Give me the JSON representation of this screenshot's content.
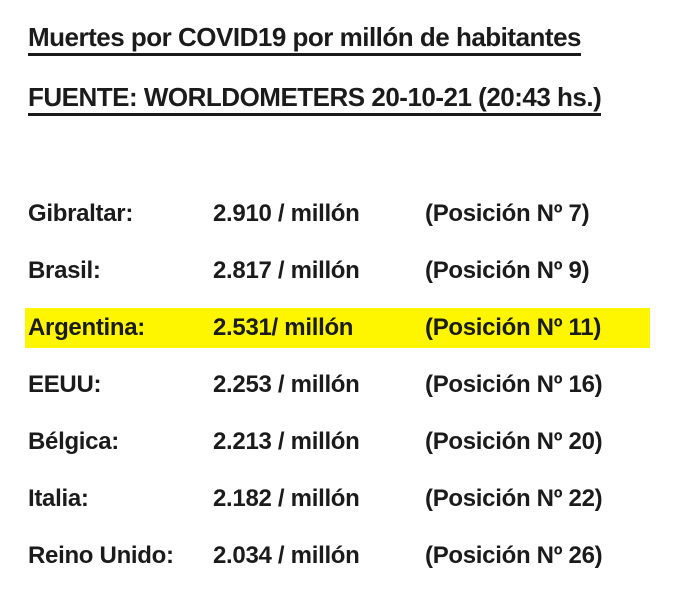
{
  "colors": {
    "background": "#ffffff",
    "text": "#1b1b1b",
    "highlight": "#fdf600"
  },
  "header": {
    "title": "Muertes por COVID19 por millón de habitantes",
    "source": "FUENTE: WORLDOMETERS 20-10-21 (20:43 hs.)"
  },
  "table": {
    "rows": [
      {
        "country": "Gibraltar:",
        "value": "2.910 / millón",
        "position": "(Posición Nº 7)",
        "highlighted": false
      },
      {
        "country": "Brasil:",
        "value": "2.817 / millón",
        "position": "(Posición Nº 9)",
        "highlighted": false
      },
      {
        "country": "Argentina:",
        "value": "2.531/ millón",
        "position": "(Posición Nº 11)",
        "highlighted": true
      },
      {
        "country": "EEUU:",
        "value": "2.253 / millón",
        "position": "(Posición Nº 16)",
        "highlighted": false
      },
      {
        "country": "Bélgica:",
        "value": "2.213 / millón",
        "position": "(Posición Nº 20)",
        "highlighted": false
      },
      {
        "country": "Italia:",
        "value": "2.182 / millón",
        "position": "(Posición Nº 22)",
        "highlighted": false
      },
      {
        "country": "Reino Unido:",
        "value": "2.034 / millón",
        "position": "(Posición Nº 26)",
        "highlighted": false
      }
    ]
  }
}
